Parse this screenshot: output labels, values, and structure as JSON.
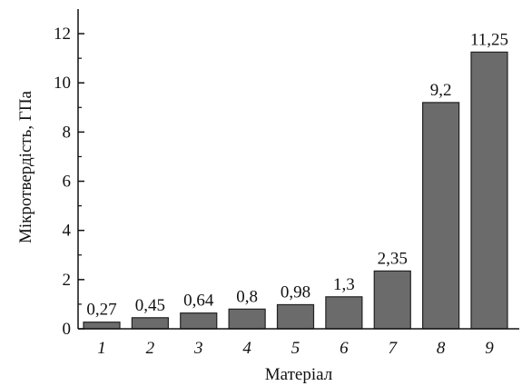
{
  "chart_data": {
    "type": "bar",
    "title": "",
    "xlabel": "Матеріал",
    "ylabel": "Мікротвердість, ГПа",
    "categories": [
      "1",
      "2",
      "3",
      "4",
      "5",
      "6",
      "7",
      "8",
      "9"
    ],
    "values": [
      0.27,
      0.45,
      0.64,
      0.8,
      0.98,
      1.3,
      2.35,
      9.2,
      11.25
    ],
    "data_labels": [
      "0,27",
      "0,45",
      "0,64",
      "0,8",
      "0,98",
      "1,3",
      "2,35",
      "9,2",
      "11,25"
    ],
    "ylim": [
      0,
      13
    ],
    "yticks": [
      0,
      2,
      4,
      6,
      8,
      10,
      12
    ],
    "ytick_labels": [
      "0",
      "2",
      "4",
      "6",
      "8",
      "10",
      "12"
    ],
    "grid": false,
    "legend": "none",
    "bar_color": "#6b6b6b",
    "edge_color": "#222222"
  }
}
